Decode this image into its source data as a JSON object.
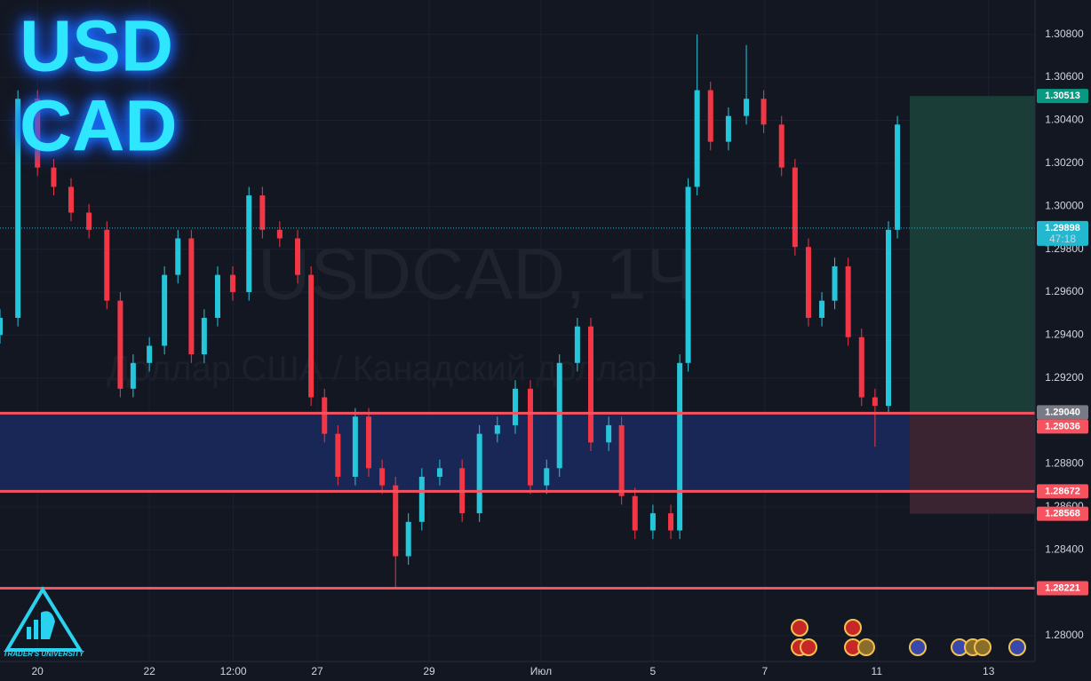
{
  "chart_data": {
    "type": "candlestick",
    "title_lines": [
      "USD",
      "CAD"
    ],
    "watermark": "USDCAD, 1Ч",
    "watermark_subtitle": "Доллар США / Канадский доллар",
    "logo_text": "TRADER'S UNIVERSITY",
    "up_color": "#26c6da",
    "down_color": "#f23645",
    "grid": true,
    "xlim": [
      -0.67,
      17.83
    ],
    "ylim": [
      1.2788,
      1.3096
    ],
    "xticks": [
      {
        "value": 0,
        "label": "20"
      },
      {
        "value": 2,
        "label": "22"
      },
      {
        "value": 3.5,
        "label": "12:00"
      },
      {
        "value": 5,
        "label": "27"
      },
      {
        "value": 7,
        "label": "29"
      },
      {
        "value": 9,
        "label": "Июл"
      },
      {
        "value": 11,
        "label": "5"
      },
      {
        "value": 13,
        "label": "7"
      },
      {
        "value": 15,
        "label": "11"
      },
      {
        "value": 17,
        "label": "13"
      }
    ],
    "yticks": [
      {
        "value": 1.308,
        "label": "1.30800"
      },
      {
        "value": 1.306,
        "label": "1.30600"
      },
      {
        "value": 1.304,
        "label": "1.30400"
      },
      {
        "value": 1.302,
        "label": "1.30200"
      },
      {
        "value": 1.3,
        "label": "1.30000"
      },
      {
        "value": 1.298,
        "label": "1.29800"
      },
      {
        "value": 1.296,
        "label": "1.29600"
      },
      {
        "value": 1.294,
        "label": "1.29400"
      },
      {
        "value": 1.292,
        "label": "1.29200"
      },
      {
        "value": 1.288,
        "label": "1.28800"
      },
      {
        "value": 1.286,
        "label": "1.28600"
      },
      {
        "value": 1.284,
        "label": "1.28400"
      },
      {
        "value": 1.28,
        "label": "1.28000"
      }
    ],
    "x": [
      -0.67,
      -0.35,
      0,
      0.29,
      0.6,
      0.92,
      1.24,
      1.48,
      1.71,
      2,
      2.27,
      2.51,
      2.75,
      2.98,
      3.22,
      3.49,
      3.78,
      4.02,
      4.33,
      4.65,
      4.89,
      5.13,
      5.37,
      5.68,
      5.92,
      6.16,
      6.4,
      6.63,
      6.87,
      7.19,
      7.59,
      7.9,
      8.22,
      8.54,
      8.81,
      9.1,
      9.33,
      9.65,
      9.89,
      10.21,
      10.44,
      10.68,
      11,
      11.32,
      11.48,
      11.63,
      11.79,
      12.03,
      12.35,
      12.67,
      12.98,
      13.3,
      13.54,
      13.78,
      14.02,
      14.25,
      14.49,
      14.73,
      14.97,
      15.21,
      15.37
    ],
    "open": [
      1.294,
      1.2948,
      1.305,
      1.3018,
      1.3009,
      1.2997,
      1.2989,
      1.2956,
      1.2915,
      1.2927,
      1.2935,
      1.2968,
      1.2985,
      1.2931,
      1.2948,
      1.2968,
      1.296,
      1.3005,
      1.2989,
      1.2985,
      1.2968,
      1.2911,
      1.2894,
      1.2874,
      1.2902,
      1.2878,
      1.287,
      1.2837,
      1.2853,
      1.2874,
      1.2878,
      1.2857,
      1.2894,
      1.2898,
      1.2915,
      1.287,
      1.2878,
      1.2927,
      1.2944,
      1.289,
      1.2898,
      1.2865,
      1.2849,
      1.2857,
      1.2849,
      1.2927,
      1.3009,
      1.3054,
      1.303,
      1.3042,
      1.305,
      1.3038,
      1.3018,
      1.2981,
      1.2948,
      1.2956,
      1.2972,
      1.2939,
      1.2911,
      1.2907,
      1.2989
    ],
    "high": [
      1.2952,
      1.3054,
      1.3054,
      1.3022,
      1.3013,
      1.3001,
      1.2993,
      1.296,
      1.2931,
      1.2939,
      1.2972,
      1.2989,
      1.2989,
      1.2952,
      1.2972,
      1.2972,
      1.3009,
      1.3009,
      1.2993,
      1.2989,
      1.2972,
      1.2915,
      1.2898,
      1.2906,
      1.2906,
      1.2882,
      1.2874,
      1.2857,
      1.2878,
      1.2882,
      1.2882,
      1.2898,
      1.2902,
      1.2919,
      1.2919,
      1.2882,
      1.2931,
      1.2948,
      1.2948,
      1.2902,
      1.2902,
      1.2869,
      1.2861,
      1.2861,
      1.2931,
      1.3013,
      1.308,
      1.3058,
      1.3046,
      1.3075,
      1.3054,
      1.3042,
      1.3022,
      1.2985,
      1.296,
      1.2976,
      1.2976,
      1.2943,
      1.2915,
      1.2993,
      1.3042
    ],
    "low": [
      1.2936,
      1.2944,
      1.3014,
      1.3005,
      1.2993,
      1.2985,
      1.2952,
      1.2911,
      1.2911,
      1.2923,
      1.2931,
      1.2964,
      1.2927,
      1.2927,
      1.2944,
      1.2956,
      1.2956,
      1.2985,
      1.2981,
      1.2964,
      1.2907,
      1.289,
      1.287,
      1.287,
      1.2874,
      1.2866,
      1.2822,
      1.2833,
      1.2849,
      1.287,
      1.2853,
      1.2853,
      1.289,
      1.2894,
      1.2866,
      1.2866,
      1.2874,
      1.2923,
      1.2886,
      1.2886,
      1.2861,
      1.2845,
      1.2845,
      1.2845,
      1.2845,
      1.2923,
      1.3005,
      1.3026,
      1.3026,
      1.3038,
      1.3034,
      1.3014,
      1.2977,
      1.2944,
      1.2944,
      1.2952,
      1.2935,
      1.2907,
      1.2888,
      1.2903,
      1.2985
    ],
    "close": [
      1.2948,
      1.305,
      1.3018,
      1.3009,
      1.2997,
      1.2989,
      1.2956,
      1.2915,
      1.2927,
      1.2935,
      1.2968,
      1.2985,
      1.2931,
      1.2948,
      1.2968,
      1.296,
      1.3005,
      1.2989,
      1.2985,
      1.2968,
      1.2911,
      1.2894,
      1.2874,
      1.2902,
      1.2878,
      1.287,
      1.2837,
      1.2853,
      1.2874,
      1.2878,
      1.2857,
      1.2894,
      1.2898,
      1.2915,
      1.287,
      1.2878,
      1.2927,
      1.2944,
      1.289,
      1.2898,
      1.2865,
      1.2849,
      1.2857,
      1.2849,
      1.2927,
      1.3009,
      1.3054,
      1.303,
      1.3042,
      1.305,
      1.3038,
      1.3018,
      1.2981,
      1.2948,
      1.2956,
      1.2972,
      1.2939,
      1.2911,
      1.2907,
      1.2989,
      1.3038
    ],
    "zone": {
      "top": 1.2904,
      "bottom": 1.28672,
      "color": "#1a2a5e"
    },
    "levels": [
      {
        "value": 1.29036,
        "label": "1.29036"
      },
      {
        "value": 1.28672,
        "label": "1.28672"
      },
      {
        "value": 1.28221,
        "label": "1.28221"
      }
    ],
    "level_color": "#f7525f",
    "position": {
      "start": 15.59,
      "target": {
        "value": 1.30513,
        "label": "1.30513"
      },
      "entry": {
        "value": 1.2904,
        "label": "1.29040"
      },
      "stop": {
        "value": 1.28568,
        "label": "1.28568"
      },
      "profit_color": "#1a3d38",
      "loss_color": "#3a2432"
    },
    "current_price": {
      "value": 1.29898,
      "label": "1.29898",
      "countdown": "47:18",
      "color": "#22b8cf"
    }
  }
}
